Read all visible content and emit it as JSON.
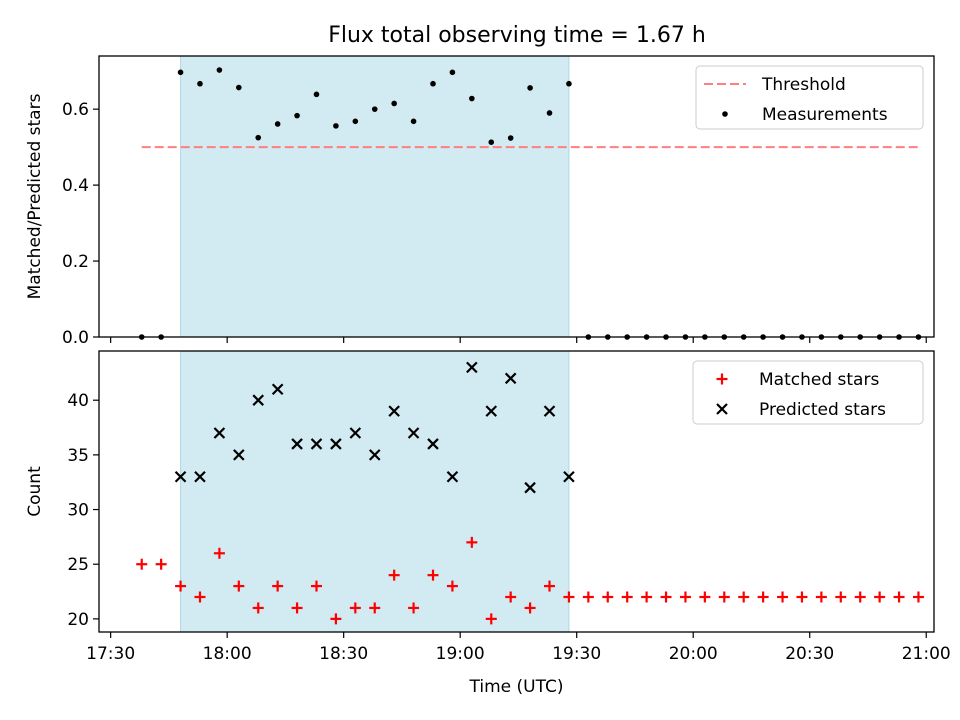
{
  "title": "Flux total observing time = 1.67 h",
  "colors": {
    "shade": "#add8e6",
    "threshold": "#ff7f7f",
    "matched": "#ff0000",
    "predicted": "#000000",
    "measure": "#000000"
  },
  "chart_data": [
    {
      "type": "scatter",
      "ylabel": "Matched/Predicted stars",
      "xlabel": "",
      "xlim": [
        "17:27",
        "21:02"
      ],
      "ylim": [
        0,
        0.74
      ],
      "yticks": [
        0.0,
        0.2,
        0.4,
        0.6
      ],
      "ytick_labels": [
        "0.0",
        "0.2",
        "0.4",
        "0.6"
      ],
      "shaded_interval": [
        "17:48",
        "19:28"
      ],
      "legend": {
        "position": "top-right",
        "entries": [
          "Threshold",
          "Measurements"
        ]
      },
      "threshold": {
        "name": "Threshold",
        "value": 0.5,
        "x": [
          "17:38",
          "20:58"
        ]
      },
      "series": [
        {
          "name": "Measurements",
          "x": [
            "17:38",
            "17:43",
            "17:48",
            "17:53",
            "17:58",
            "18:03",
            "18:08",
            "18:13",
            "18:18",
            "18:23",
            "18:28",
            "18:33",
            "18:38",
            "18:43",
            "18:48",
            "18:53",
            "18:58",
            "19:03",
            "19:08",
            "19:13",
            "19:18",
            "19:23",
            "19:28",
            "19:33",
            "19:38",
            "19:43",
            "19:48",
            "19:53",
            "19:58",
            "20:03",
            "20:08",
            "20:13",
            "20:18",
            "20:23",
            "20:28",
            "20:33",
            "20:38",
            "20:43",
            "20:48",
            "20:53",
            "20:58"
          ],
          "values": [
            0.0,
            0.0,
            0.697,
            0.667,
            0.703,
            0.657,
            0.525,
            0.561,
            0.583,
            0.639,
            0.556,
            0.568,
            0.6,
            0.615,
            0.568,
            0.667,
            0.697,
            0.628,
            0.513,
            0.524,
            0.656,
            0.59,
            0.667,
            0,
            0,
            0,
            0,
            0,
            0,
            0,
            0,
            0,
            0,
            0,
            0,
            0,
            0,
            0,
            0,
            0,
            0
          ]
        }
      ]
    },
    {
      "type": "scatter",
      "ylabel": "Count",
      "xlabel": "Time (UTC)",
      "xlim": [
        "17:27",
        "21:02"
      ],
      "ylim": [
        18.8,
        44.5
      ],
      "yticks": [
        20,
        25,
        30,
        35,
        40
      ],
      "ytick_labels": [
        "20",
        "25",
        "30",
        "35",
        "40"
      ],
      "xticks": [
        "17:30",
        "18:00",
        "18:30",
        "19:00",
        "19:30",
        "20:00",
        "20:30",
        "21:00"
      ],
      "shaded_interval": [
        "17:48",
        "19:28"
      ],
      "legend": {
        "position": "top-right",
        "entries": [
          "Matched stars",
          "Predicted stars"
        ]
      },
      "series": [
        {
          "name": "Matched stars",
          "x": [
            "17:38",
            "17:43",
            "17:48",
            "17:53",
            "17:58",
            "18:03",
            "18:08",
            "18:13",
            "18:18",
            "18:23",
            "18:28",
            "18:33",
            "18:38",
            "18:43",
            "18:48",
            "18:53",
            "18:58",
            "19:03",
            "19:08",
            "19:13",
            "19:18",
            "19:23",
            "19:28",
            "19:33",
            "19:38",
            "19:43",
            "19:48",
            "19:53",
            "19:58",
            "20:03",
            "20:08",
            "20:13",
            "20:18",
            "20:23",
            "20:28",
            "20:33",
            "20:38",
            "20:43",
            "20:48",
            "20:53",
            "20:58"
          ],
          "values": [
            25,
            25,
            23,
            22,
            26,
            23,
            21,
            23,
            21,
            23,
            20,
            21,
            21,
            24,
            21,
            24,
            23,
            27,
            20,
            22,
            21,
            23,
            22,
            22,
            22,
            22,
            22,
            22,
            22,
            22,
            22,
            22,
            22,
            22,
            22,
            22,
            22,
            22,
            22,
            22,
            22
          ]
        },
        {
          "name": "Predicted stars",
          "x": [
            "17:48",
            "17:53",
            "17:58",
            "18:03",
            "18:08",
            "18:13",
            "18:18",
            "18:23",
            "18:28",
            "18:33",
            "18:38",
            "18:43",
            "18:48",
            "18:53",
            "18:58",
            "19:03",
            "19:08",
            "19:13",
            "19:18",
            "19:23",
            "19:28"
          ],
          "values": [
            33,
            33,
            37,
            35,
            40,
            41,
            36,
            36,
            36,
            37,
            35,
            39,
            37,
            36,
            33,
            43,
            39,
            42,
            32,
            39,
            33
          ]
        }
      ]
    }
  ]
}
